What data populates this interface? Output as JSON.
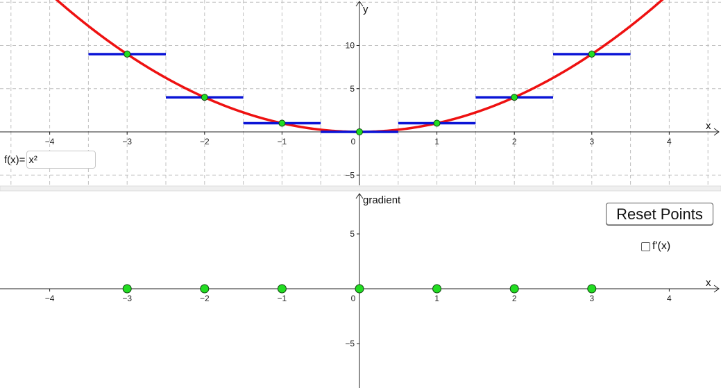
{
  "colors": {
    "curve": "#ee1111",
    "tangent": "#0a14d6",
    "point_fill": "#22dd22",
    "point_stroke": "#114411",
    "grid": "#c0c0c0",
    "axis": "#222222"
  },
  "input": {
    "label": "f(x)=",
    "value": "x²"
  },
  "controls": {
    "reset_label": "Reset Points",
    "derivative_label": "f'(x)",
    "derivative_checked": false
  },
  "chart_data": [
    {
      "type": "line",
      "xlabel": "x",
      "ylabel": "y",
      "xlim": [
        -4.7,
        4.7
      ],
      "ylim": [
        -6,
        15
      ],
      "x_ticks": [
        -4,
        -3,
        -2,
        -1,
        0,
        1,
        2,
        3,
        4
      ],
      "y_ticks": [
        -5,
        5,
        10
      ],
      "grid": true,
      "curve_function": "x^2",
      "points": [
        {
          "x": -3,
          "y": 9
        },
        {
          "x": -2,
          "y": 4
        },
        {
          "x": -1,
          "y": 1
        },
        {
          "x": 0,
          "y": 0
        },
        {
          "x": 1,
          "y": 1
        },
        {
          "x": 2,
          "y": 4
        },
        {
          "x": 3,
          "y": 9
        }
      ],
      "tangent_slope": 0,
      "tangent_half_width": 0.5
    },
    {
      "type": "scatter",
      "xlabel": "x",
      "ylabel": "gradient",
      "xlim": [
        -4.7,
        4.7
      ],
      "ylim": [
        -11,
        10
      ],
      "x_ticks": [
        -4,
        -3,
        -2,
        -1,
        0,
        1,
        2,
        3,
        4
      ],
      "y_ticks": [
        -5,
        5
      ],
      "grid": false,
      "points": [
        {
          "x": -3,
          "y": 0
        },
        {
          "x": -2,
          "y": 0
        },
        {
          "x": -1,
          "y": 0
        },
        {
          "x": 0,
          "y": 0
        },
        {
          "x": 1,
          "y": 0
        },
        {
          "x": 2,
          "y": 0
        },
        {
          "x": 3,
          "y": 0
        }
      ]
    }
  ]
}
